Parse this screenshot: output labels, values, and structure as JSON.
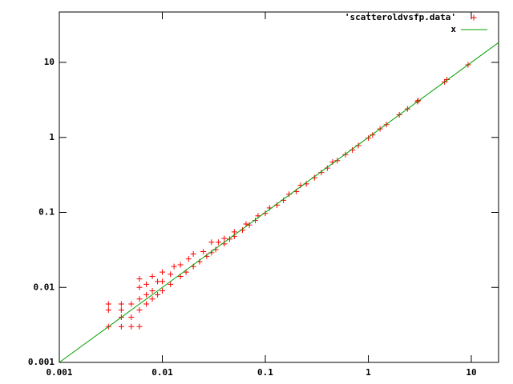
{
  "chart_data": {
    "type": "scatter",
    "xlim": [
      0.001,
      18.4
    ],
    "ylim": [
      0.001,
      47
    ],
    "xticks": [
      0.001,
      0.01,
      0.1,
      1,
      10
    ],
    "yticks": [
      0.001,
      0.01,
      0.1,
      1,
      10
    ],
    "xscale": "log",
    "yscale": "log",
    "legend": "top-right",
    "series": [
      {
        "name": "'scatteroldvsfp.data'",
        "color": "#ff0000",
        "marker": "plus",
        "x": [
          0.003,
          0.003,
          0.003,
          0.004,
          0.004,
          0.004,
          0.004,
          0.005,
          0.005,
          0.005,
          0.006,
          0.006,
          0.006,
          0.006,
          0.006,
          0.007,
          0.007,
          0.007,
          0.008,
          0.008,
          0.008,
          0.009,
          0.009,
          0.01,
          0.01,
          0.01,
          0.012,
          0.012,
          0.013,
          0.015,
          0.015,
          0.017,
          0.018,
          0.02,
          0.02,
          0.023,
          0.025,
          0.027,
          0.03,
          0.03,
          0.033,
          0.035,
          0.04,
          0.04,
          0.045,
          0.05,
          0.05,
          0.06,
          0.065,
          0.07,
          0.08,
          0.085,
          0.1,
          0.11,
          0.13,
          0.15,
          0.17,
          0.2,
          0.22,
          0.25,
          0.3,
          0.35,
          0.4,
          0.45,
          0.5,
          0.6,
          0.7,
          0.8,
          1,
          1.1,
          1.3,
          1.5,
          2,
          2.4,
          3,
          3.05,
          5.5,
          5.8,
          9.3
        ],
        "y": [
          0.003,
          0.005,
          0.006,
          0.003,
          0.004,
          0.005,
          0.006,
          0.003,
          0.004,
          0.006,
          0.003,
          0.005,
          0.007,
          0.01,
          0.013,
          0.006,
          0.008,
          0.011,
          0.007,
          0.009,
          0.014,
          0.008,
          0.012,
          0.009,
          0.012,
          0.016,
          0.011,
          0.015,
          0.019,
          0.014,
          0.02,
          0.016,
          0.024,
          0.019,
          0.028,
          0.022,
          0.03,
          0.026,
          0.029,
          0.04,
          0.032,
          0.04,
          0.038,
          0.045,
          0.044,
          0.048,
          0.055,
          0.058,
          0.07,
          0.068,
          0.078,
          0.09,
          0.097,
          0.115,
          0.125,
          0.145,
          0.175,
          0.19,
          0.23,
          0.24,
          0.29,
          0.34,
          0.39,
          0.47,
          0.49,
          0.59,
          0.68,
          0.78,
          0.98,
          1.08,
          1.3,
          1.48,
          2,
          2.4,
          3,
          3.1,
          5.5,
          5.9,
          9.3
        ]
      },
      {
        "name": "x",
        "color": "#00a000",
        "marker": "line",
        "function": "identity"
      }
    ]
  }
}
